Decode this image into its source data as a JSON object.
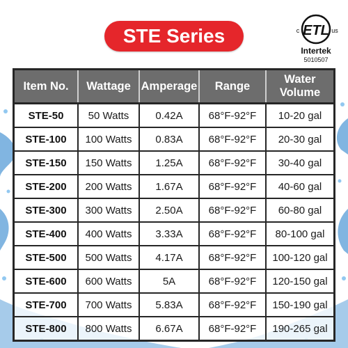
{
  "title": "STE Series",
  "certification": {
    "brand": "Intertek",
    "number": "5010507",
    "mark": "ETL",
    "left_letter": "c",
    "right_letters": "us"
  },
  "table": {
    "headers": [
      "Item No.",
      "Wattage",
      "Amperage",
      "Range",
      "Water Volume"
    ],
    "rows": [
      [
        "STE-50",
        "50 Watts",
        "0.42A",
        "68°F-92°F",
        "10-20 gal"
      ],
      [
        "STE-100",
        "100 Watts",
        "0.83A",
        "68°F-92°F",
        "20-30 gal"
      ],
      [
        "STE-150",
        "150 Watts",
        "1.25A",
        "68°F-92°F",
        "30-40 gal"
      ],
      [
        "STE-200",
        "200 Watts",
        "1.67A",
        "68°F-92°F",
        "40-60 gal"
      ],
      [
        "STE-300",
        "300 Watts",
        "2.50A",
        "68°F-92°F",
        "60-80 gal"
      ],
      [
        "STE-400",
        "400 Watts",
        "3.33A",
        "68°F-92°F",
        "80-100 gal"
      ],
      [
        "STE-500",
        "500 Watts",
        "4.17A",
        "68°F-92°F",
        "100-120 gal"
      ],
      [
        "STE-600",
        "600 Watts",
        "5A",
        "68°F-92°F",
        "120-150 gal"
      ],
      [
        "STE-700",
        "700 Watts",
        "5.83A",
        "68°F-92°F",
        "150-190 gal"
      ],
      [
        "STE-800",
        "800 Watts",
        "6.67A",
        "68°F-92°F",
        "190-265 gal"
      ]
    ]
  },
  "colors": {
    "title_background": "#e5262b",
    "header_background": "#6d6d6d",
    "water_splash": "#1a78c8"
  }
}
